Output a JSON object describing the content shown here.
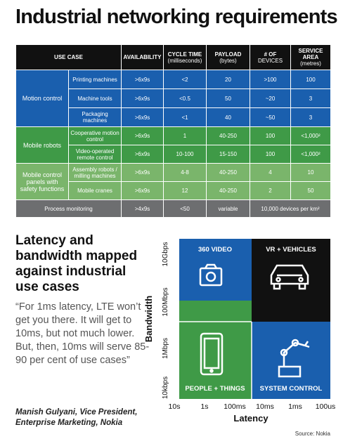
{
  "title": "Industrial networking requirements",
  "table": {
    "columns": [
      {
        "name": "USE CASE"
      },
      {
        "name": "AVAILABILITY"
      },
      {
        "name": "CYCLE TIME",
        "unit": "(milliseconds)"
      },
      {
        "name": "PAYLOAD",
        "unit": "(bytes)"
      },
      {
        "name": "# OF",
        "unit": "DEVICES"
      },
      {
        "name": "SERVICE AREA",
        "unit": "(metres)"
      }
    ],
    "groups": [
      {
        "name": "Motion control",
        "rows": [
          [
            "Printing machines",
            ">6x9s",
            "<2",
            "20",
            ">100",
            "100"
          ],
          [
            "Machine tools",
            ">6x9s",
            "<0.5",
            "50",
            "~20",
            "3"
          ],
          [
            "Packaging machines",
            ">6x9s",
            "<1",
            "40",
            "~50",
            "3"
          ]
        ]
      },
      {
        "name": "Mobile robots",
        "rows": [
          [
            "Cooperative motion control",
            ">6x9s",
            "1",
            "40-250",
            "100",
            "<1,000²"
          ],
          [
            "Video-operated remote control",
            ">6x9s",
            "10-100",
            "15-150",
            "100",
            "<1,000²"
          ]
        ]
      },
      {
        "name": "Mobile control panels with safety functions",
        "rows": [
          [
            "Assembly robots / milling machines",
            ">6x9s",
            "4-8",
            "40-250",
            "4",
            "10"
          ],
          [
            "Mobile cranes",
            ">6x9s",
            "12",
            "40-250",
            "2",
            "50"
          ]
        ]
      },
      {
        "name": "Process monitoring",
        "cells": [
          ">4x9s",
          "<50",
          "variable",
          "10,000 devices per km²"
        ]
      }
    ]
  },
  "article": {
    "heading": "Latency and bandwidth mapped against industrial use cases",
    "quote": "“For 1ms latency, LTE won’t get you there. It will get to 10ms, but not much lower. But, then, 10ms will serve 85-90 per cent of use cases”",
    "attribution": "Manish Gulyani, Vice President, Enterprise Marketing, Nokia"
  },
  "diagram": {
    "y_label": "Bandwidth",
    "y_ticks": [
      "10Gbps",
      "100Mbps",
      "1Mbps",
      "10kbps"
    ],
    "x_label": "Latency",
    "x_ticks": [
      "10s",
      "1s",
      "100ms",
      "10ms",
      "1ms",
      "100us"
    ],
    "quadrants": [
      "360 VIDEO",
      "VR + VEHICLES",
      "PEOPLE + THINGS",
      "SYSTEM CONTROL"
    ],
    "source": "Source: Nokia"
  }
}
